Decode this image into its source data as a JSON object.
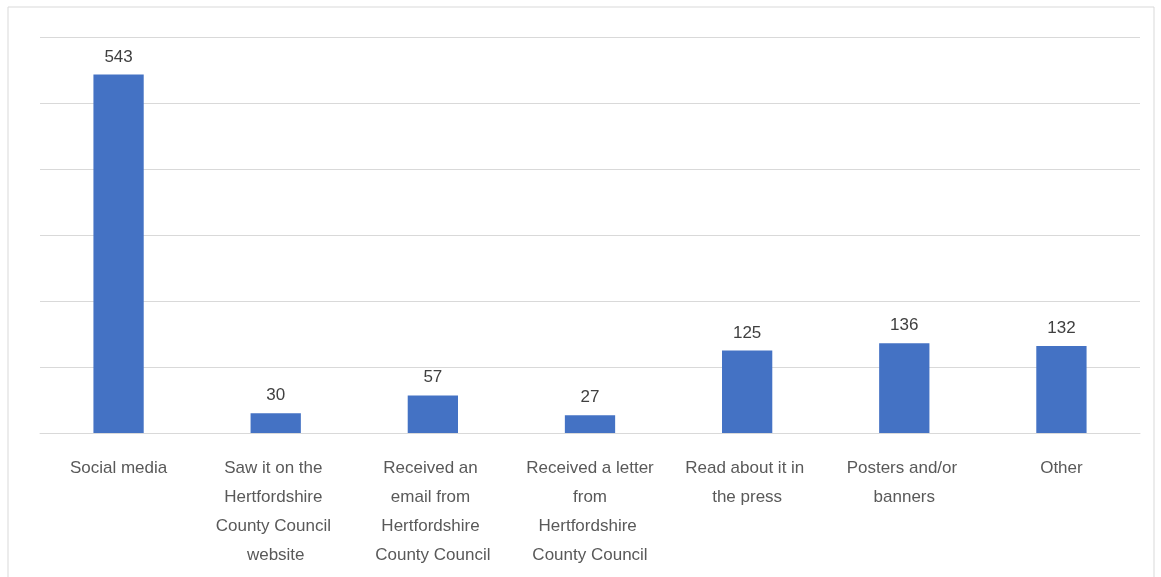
{
  "chart_data": {
    "type": "bar",
    "categories": [
      "Social media",
      "Saw it on the Hertfordshire County Council website",
      "Received an email from Hertfordshire County Council",
      "Received a letter from Hertfordshire County Council",
      "Read about it in the press",
      "Posters and/or banners",
      "Other"
    ],
    "values": [
      543,
      30,
      57,
      27,
      125,
      136,
      132
    ],
    "color": "#4472c4",
    "ylim": [
      0,
      600
    ],
    "yticks": [
      {
        "value": 0,
        "label": null
      },
      {
        "value": 100,
        "label": null
      },
      {
        "value": 200,
        "label": null
      },
      {
        "value": 300,
        "label": null
      },
      {
        "value": 400,
        "label": null
      },
      {
        "value": 500,
        "label": null
      },
      {
        "value": 600,
        "label": null
      }
    ],
    "tick_labels": "x",
    "grid": "y",
    "data_labels": true
  }
}
